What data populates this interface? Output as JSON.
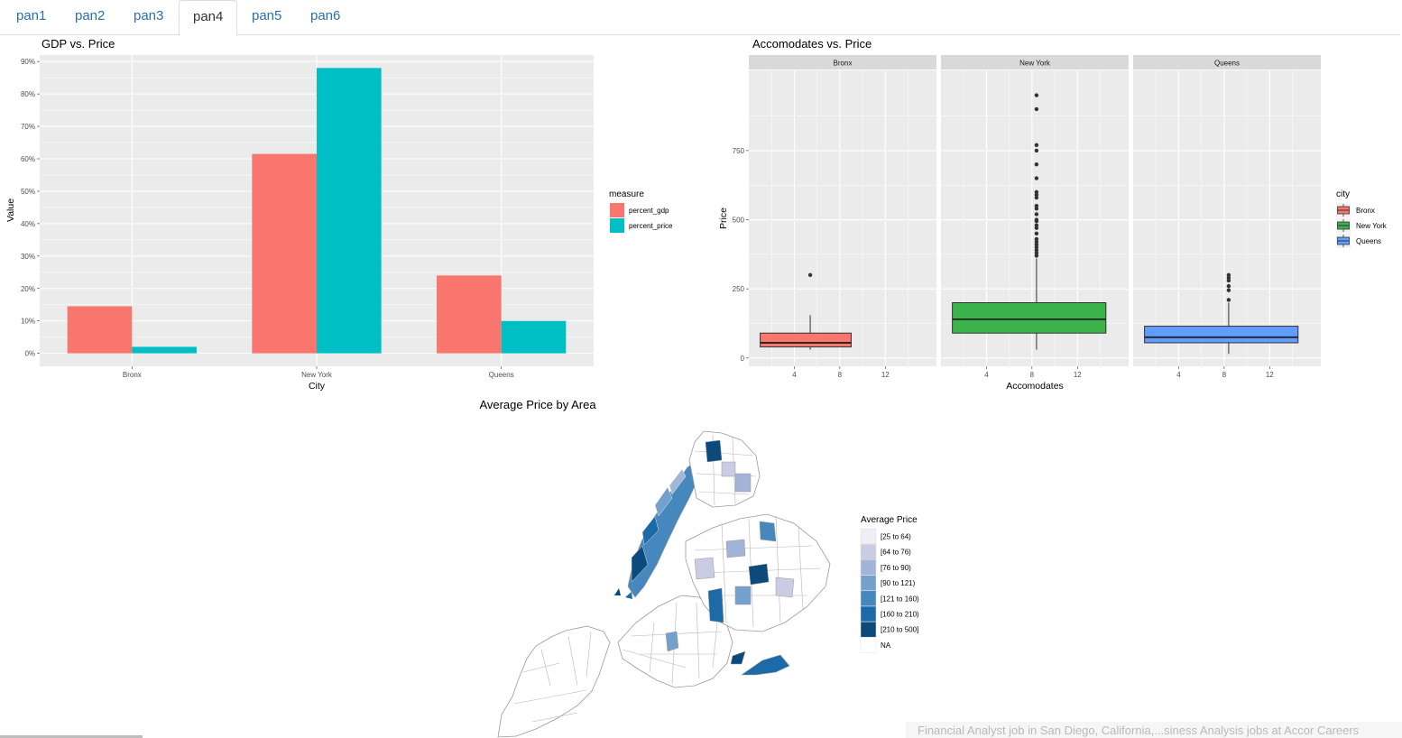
{
  "tabs": [
    {
      "label": "pan1"
    },
    {
      "label": "pan2"
    },
    {
      "label": "pan3"
    },
    {
      "label": "pan4"
    },
    {
      "label": "pan5"
    },
    {
      "label": "pan6"
    }
  ],
  "active_tab": "pan4",
  "footer": {
    "text": "Financial Analyst job in San Diego, California,...siness Analysis jobs at Accor Careers"
  },
  "colors": {
    "red": "#F8766D",
    "teal": "#00BFC4",
    "green": "#3CB44B",
    "blue": "#619CFF",
    "panel": "#EBEBEB"
  },
  "chart_data": [
    {
      "type": "bar",
      "title": "GDP vs. Price",
      "xlabel": "City",
      "ylabel": "Value",
      "categories": [
        "Bronx",
        "New York",
        "Queens"
      ],
      "series": [
        {
          "name": "percent_gdp",
          "values": [
            0.145,
            0.615,
            0.24
          ]
        },
        {
          "name": "percent_price",
          "values": [
            0.02,
            0.88,
            0.1
          ]
        }
      ],
      "ylim": [
        -0.04,
        0.92
      ],
      "y_ticks": [
        "0%",
        "10%",
        "20%",
        "30%",
        "40%",
        "50%",
        "60%",
        "70%",
        "80%",
        "90%"
      ],
      "legend": {
        "title": "measure",
        "position": "right"
      },
      "grid": true
    },
    {
      "type": "box",
      "title": "Accomodates vs. Price",
      "xlabel": "Accomodates",
      "ylabel": "Price",
      "facets": [
        "Bronx",
        "New York",
        "Queens"
      ],
      "x_ticks": [
        4,
        8,
        12
      ],
      "xlim": [
        0,
        16.5
      ],
      "y_ticks": [
        0,
        250,
        500,
        750
      ],
      "ylim": [
        -30,
        1040
      ],
      "legend": {
        "title": "city",
        "position": "right"
      },
      "boxes": [
        {
          "name": "Bronx",
          "x_range": [
            1,
            9
          ],
          "q1": 40,
          "median": 55,
          "q3": 90,
          "whisker_low": 30,
          "whisker_high": 155,
          "outliers": [
            300
          ]
        },
        {
          "name": "New York",
          "x_range": [
            1,
            14.5
          ],
          "q1": 90,
          "median": 140,
          "q3": 200,
          "whisker_low": 30,
          "whisker_high": 360,
          "outliers": [
            370,
            380,
            390,
            400,
            410,
            420,
            430,
            450,
            470,
            480,
            495,
            500,
            520,
            540,
            550,
            580,
            590,
            600,
            650,
            700,
            750,
            770,
            900,
            950
          ]
        },
        {
          "name": "Queens",
          "x_range": [
            1,
            14.5
          ],
          "q1": 55,
          "median": 75,
          "q3": 115,
          "whisker_low": 15,
          "whisker_high": 200,
          "outliers": [
            210,
            245,
            260,
            280,
            290,
            300
          ]
        }
      ],
      "grid": true
    },
    {
      "type": "choropleth",
      "title": "Average Price by Area",
      "legend": {
        "title": "Average Price",
        "position": "right",
        "entries": [
          {
            "label": "[25 to 64)",
            "color": "#EFEDF5"
          },
          {
            "label": "[64 to 76)",
            "color": "#C9CCE3"
          },
          {
            "label": "[76 to 90)",
            "color": "#A2B5D6"
          },
          {
            "label": "[90 to 121)",
            "color": "#74A1CB"
          },
          {
            "label": "[121 to 160)",
            "color": "#4688BE"
          },
          {
            "label": "[160 to 210)",
            "color": "#1D6AA8"
          },
          {
            "label": "[210 to 500]",
            "color": "#0B4A7A"
          },
          {
            "label": "NA",
            "color": "#FFFFFF"
          }
        ]
      }
    }
  ]
}
